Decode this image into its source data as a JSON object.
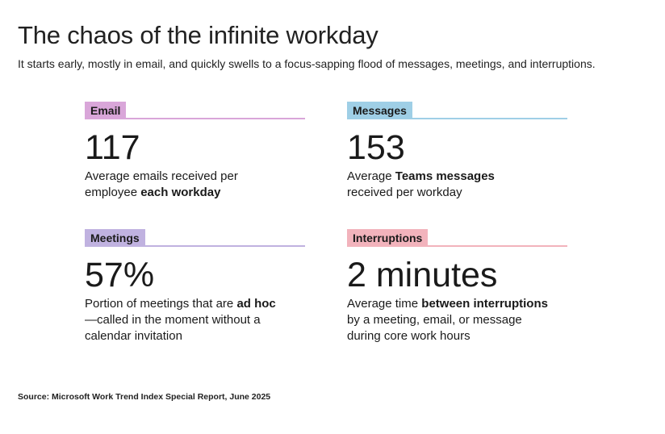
{
  "title": "The chaos of the infinite workday",
  "subtitle": "It starts early, mostly in email, and quickly swells to a focus-sapping flood of messages, meetings, and interruptions.",
  "cards": {
    "email": {
      "label": "Email",
      "color": "#d9a6d9",
      "value": "117",
      "desc_line1": "Average emails received per",
      "desc_line2_pre": "employee ",
      "desc_line2_bold": "each workday"
    },
    "messages": {
      "label": "Messages",
      "color": "#9fcfe6",
      "value": "153",
      "desc_line1_pre": "Average ",
      "desc_line1_bold": "Teams messages",
      "desc_line2": "received per workday"
    },
    "meetings": {
      "label": "Meetings",
      "color": "#c0b2e0",
      "value": "57%",
      "desc_line1_pre": "Portion of meetings that are ",
      "desc_line1_bold": "ad hoc",
      "desc_line2": "—called in the moment without a",
      "desc_line3": "calendar invitation"
    },
    "interruptions": {
      "label": "Interruptions",
      "color": "#f2b3bc",
      "value": "2 minutes",
      "desc_line1_pre": "Average time ",
      "desc_line1_bold": "between interruptions",
      "desc_line2": "by a meeting, email, or message",
      "desc_line3": "during core work hours"
    }
  },
  "source": "Source: Microsoft Work Trend Index Special Report, June 2025"
}
